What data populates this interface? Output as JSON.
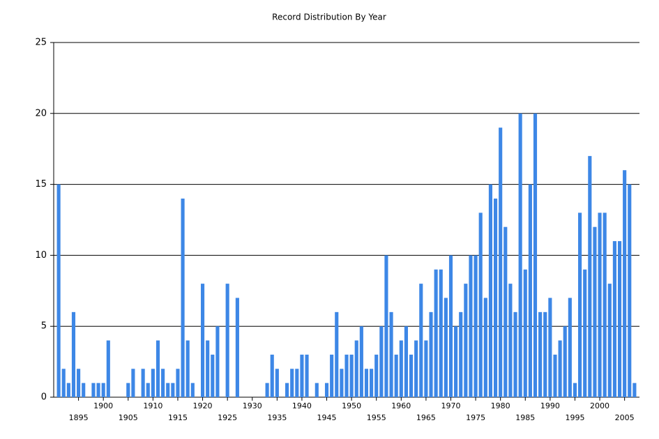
{
  "chart_data": {
    "type": "bar",
    "title": "Record Distribution By Year",
    "color": "#3d87e6",
    "grid": true,
    "x": [
      1891,
      1892,
      1893,
      1894,
      1895,
      1896,
      1897,
      1898,
      1899,
      1900,
      1901,
      1902,
      1903,
      1904,
      1905,
      1906,
      1907,
      1908,
      1909,
      1910,
      1911,
      1912,
      1913,
      1914,
      1915,
      1916,
      1917,
      1918,
      1919,
      1920,
      1921,
      1922,
      1923,
      1924,
      1925,
      1926,
      1927,
      1928,
      1929,
      1930,
      1931,
      1932,
      1933,
      1934,
      1935,
      1936,
      1937,
      1938,
      1939,
      1940,
      1941,
      1942,
      1943,
      1944,
      1945,
      1946,
      1947,
      1948,
      1949,
      1950,
      1951,
      1952,
      1953,
      1954,
      1955,
      1956,
      1957,
      1958,
      1959,
      1960,
      1961,
      1962,
      1963,
      1964,
      1965,
      1966,
      1967,
      1968,
      1969,
      1970,
      1971,
      1972,
      1973,
      1974,
      1975,
      1976,
      1977,
      1978,
      1979,
      1980,
      1981,
      1982,
      1983,
      1984,
      1985,
      1986,
      1987,
      1988,
      1989,
      1990,
      1991,
      1992,
      1993,
      1994,
      1995,
      1996,
      1997,
      1998,
      1999,
      2000,
      2001,
      2002,
      2003,
      2004,
      2005,
      2006,
      2007
    ],
    "values": [
      15,
      2,
      1,
      6,
      2,
      1,
      0,
      1,
      1,
      1,
      4,
      0,
      0,
      0,
      1,
      2,
      0,
      2,
      1,
      2,
      4,
      2,
      1,
      1,
      2,
      14,
      4,
      1,
      0,
      8,
      4,
      3,
      5,
      0,
      8,
      0,
      7,
      0,
      0,
      0,
      0,
      0,
      1,
      3,
      2,
      0,
      1,
      2,
      2,
      3,
      3,
      0,
      1,
      0,
      1,
      3,
      6,
      2,
      3,
      3,
      4,
      5,
      2,
      2,
      3,
      5,
      10,
      6,
      3,
      4,
      5,
      3,
      4,
      8,
      4,
      6,
      9,
      9,
      7,
      10,
      5,
      6,
      8,
      10,
      10,
      13,
      7,
      15,
      14,
      19,
      12,
      8,
      6,
      20,
      9,
      15,
      20,
      6,
      6,
      7,
      3,
      4,
      5,
      7,
      1,
      13,
      9,
      17,
      12,
      13,
      13,
      8,
      11,
      11,
      16,
      15,
      1
    ],
    "xlim": [
      1890,
      2008
    ],
    "xticks": [
      1895,
      1900,
      1905,
      1910,
      1915,
      1920,
      1925,
      1930,
      1935,
      1940,
      1945,
      1950,
      1955,
      1960,
      1965,
      1970,
      1975,
      1980,
      1985,
      1990,
      1995,
      2000,
      2005
    ],
    "ylim": [
      0,
      25
    ],
    "yticks": [
      0,
      5,
      10,
      15,
      20,
      25
    ]
  }
}
